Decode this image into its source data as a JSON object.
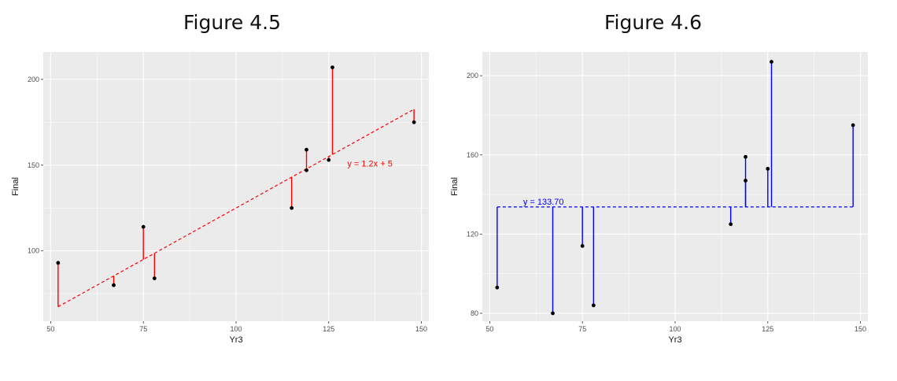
{
  "chart_data": [
    {
      "type": "scatter",
      "title": "Figure 4.5",
      "xlabel": "Yr3",
      "ylabel": "Final",
      "xlim": [
        48,
        152
      ],
      "ylim": [
        59,
        216
      ],
      "x_ticks": [
        50,
        75,
        100,
        125,
        150
      ],
      "y_ticks": [
        100,
        150,
        200
      ],
      "grid": true,
      "points": [
        {
          "x": 52,
          "y": 93
        },
        {
          "x": 67,
          "y": 80
        },
        {
          "x": 75,
          "y": 114
        },
        {
          "x": 78,
          "y": 84
        },
        {
          "x": 115,
          "y": 125
        },
        {
          "x": 119,
          "y": 147
        },
        {
          "x": 119,
          "y": 159
        },
        {
          "x": 125,
          "y": 153
        },
        {
          "x": 126,
          "y": 207
        },
        {
          "x": 148,
          "y": 175
        }
      ],
      "fit_line": {
        "slope": 1.2,
        "intercept": 5
      },
      "annotation": {
        "text": "y = 1.2x + 5",
        "x": 130,
        "y": 151
      },
      "color": "#ff0000"
    },
    {
      "type": "scatter",
      "title": "Figure 4.6",
      "xlabel": "Yr3",
      "ylabel": "Final",
      "xlim": [
        48,
        152
      ],
      "ylim": [
        76,
        212
      ],
      "x_ticks": [
        50,
        75,
        100,
        125,
        150
      ],
      "y_ticks": [
        80,
        120,
        160,
        200
      ],
      "grid": true,
      "points": [
        {
          "x": 52,
          "y": 93
        },
        {
          "x": 67,
          "y": 80
        },
        {
          "x": 75,
          "y": 114
        },
        {
          "x": 78,
          "y": 84
        },
        {
          "x": 115,
          "y": 125
        },
        {
          "x": 119,
          "y": 147
        },
        {
          "x": 119,
          "y": 159
        },
        {
          "x": 125,
          "y": 153
        },
        {
          "x": 126,
          "y": 207
        },
        {
          "x": 148,
          "y": 175
        }
      ],
      "fit_line": {
        "slope": 0,
        "intercept": 133.7
      },
      "annotation": {
        "text": "y = 133.70",
        "x": 59,
        "y": 133.7
      },
      "color": "#0000ff"
    }
  ]
}
